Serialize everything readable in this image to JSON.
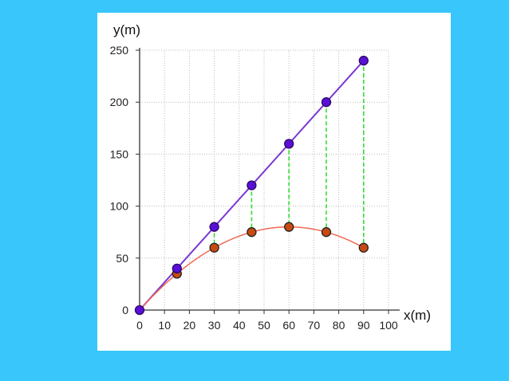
{
  "chart_data": {
    "type": "scatter",
    "xlabel": "x(m)",
    "ylabel": "y(m)",
    "xlim": [
      0,
      100
    ],
    "ylim": [
      0,
      250
    ],
    "x_ticks": [
      0,
      10,
      20,
      30,
      40,
      50,
      60,
      70,
      80,
      90,
      100
    ],
    "y_ticks": [
      0,
      50,
      100,
      150,
      200,
      250
    ],
    "grid": true,
    "series": [
      {
        "color": "#5a0fd6",
        "line_color": "#7a38d2",
        "x": [
          0,
          15,
          30,
          45,
          60,
          75,
          90
        ],
        "y": [
          0,
          40,
          80,
          120,
          160,
          200,
          240
        ]
      },
      {
        "color": "#c84a10",
        "line_color": "#f06a55",
        "x": [
          0,
          15,
          30,
          45,
          60,
          75,
          90
        ],
        "y": [
          0,
          35,
          60,
          75,
          80,
          75,
          60
        ]
      }
    ],
    "connector_color": "#33dd33"
  }
}
